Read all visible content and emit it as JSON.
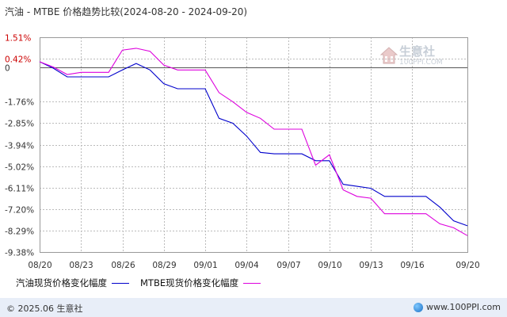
{
  "title": "汽油 - MTBE 价格趋势比较(2024-08-20 - 2024-09-20)",
  "watermark": {
    "name": "生意社",
    "url": "100PPI.COM",
    "logo_icon": "house-logo-icon"
  },
  "footer": {
    "copyright": "© 2025.06 生意社",
    "url": "www.100PPI.com",
    "icon": "globe-icon"
  },
  "colors": {
    "series1": "#0000cc",
    "series2": "#dd00dd",
    "zero_line": "#555555",
    "grid": "#bbbbbb",
    "axis_label": "#cc0000"
  },
  "chart_data": {
    "type": "line",
    "title": "汽油 - MTBE 价格趋势比较(2024-08-20 - 2024-09-20)",
    "xlabel": "",
    "ylabel": "",
    "unit": "%",
    "grid": true,
    "legend_position": "bottom",
    "x_ticks": [
      "08/20",
      "08/23",
      "08/26",
      "08/29",
      "09/01",
      "09/04",
      "09/07",
      "09/10",
      "09/13",
      "09/16",
      "09/20"
    ],
    "y_ticks": [
      "1.51%",
      "0.42%",
      "0",
      "-1.76%",
      "-2.85%",
      "-3.94%",
      "-5.02%",
      "-6.11%",
      "-7.20%",
      "-8.29%",
      "-9.38%"
    ],
    "y_tick_values": [
      1.51,
      0.42,
      0,
      -1.76,
      -2.85,
      -3.94,
      -5.02,
      -6.11,
      -7.2,
      -8.29,
      -9.38
    ],
    "y_tick_style": {
      "1.51%": "red",
      "0.42%": "red"
    },
    "ylim": [
      -9.38,
      1.51
    ],
    "x": [
      "08/20",
      "08/21",
      "08/22",
      "08/23",
      "08/24",
      "08/25",
      "08/26",
      "08/27",
      "08/28",
      "08/29",
      "08/30",
      "08/31",
      "09/01",
      "09/02",
      "09/03",
      "09/04",
      "09/05",
      "09/06",
      "09/07",
      "09/08",
      "09/09",
      "09/10",
      "09/11",
      "09/12",
      "09/13",
      "09/14",
      "09/15",
      "09/16",
      "09/17",
      "09/18",
      "09/19",
      "09/20"
    ],
    "series": [
      {
        "name": "汽油现货价格变化幅度",
        "color": "#0000cc",
        "values": [
          0.27,
          -0.06,
          -0.5,
          -0.5,
          -0.5,
          -0.5,
          -0.15,
          0.18,
          -0.15,
          -0.85,
          -1.1,
          -1.1,
          -1.1,
          -2.6,
          -2.85,
          -3.5,
          -4.33,
          -4.4,
          -4.4,
          -4.4,
          -4.75,
          -4.75,
          -5.95,
          -6.05,
          -6.15,
          -6.56,
          -6.56,
          -6.56,
          -6.56,
          -7.1,
          -7.8,
          -8.05
        ]
      },
      {
        "name": "MTBE现货价格变化幅度",
        "color": "#dd00dd",
        "values": [
          0.27,
          0.0,
          -0.38,
          -0.27,
          -0.27,
          -0.27,
          0.86,
          0.95,
          0.8,
          0.1,
          -0.15,
          -0.15,
          -0.15,
          -1.3,
          -1.76,
          -2.3,
          -2.6,
          -3.15,
          -3.15,
          -3.15,
          -4.98,
          -4.45,
          -6.23,
          -6.56,
          -6.65,
          -7.44,
          -7.44,
          -7.44,
          -7.44,
          -7.95,
          -8.15,
          -8.55
        ]
      }
    ]
  }
}
